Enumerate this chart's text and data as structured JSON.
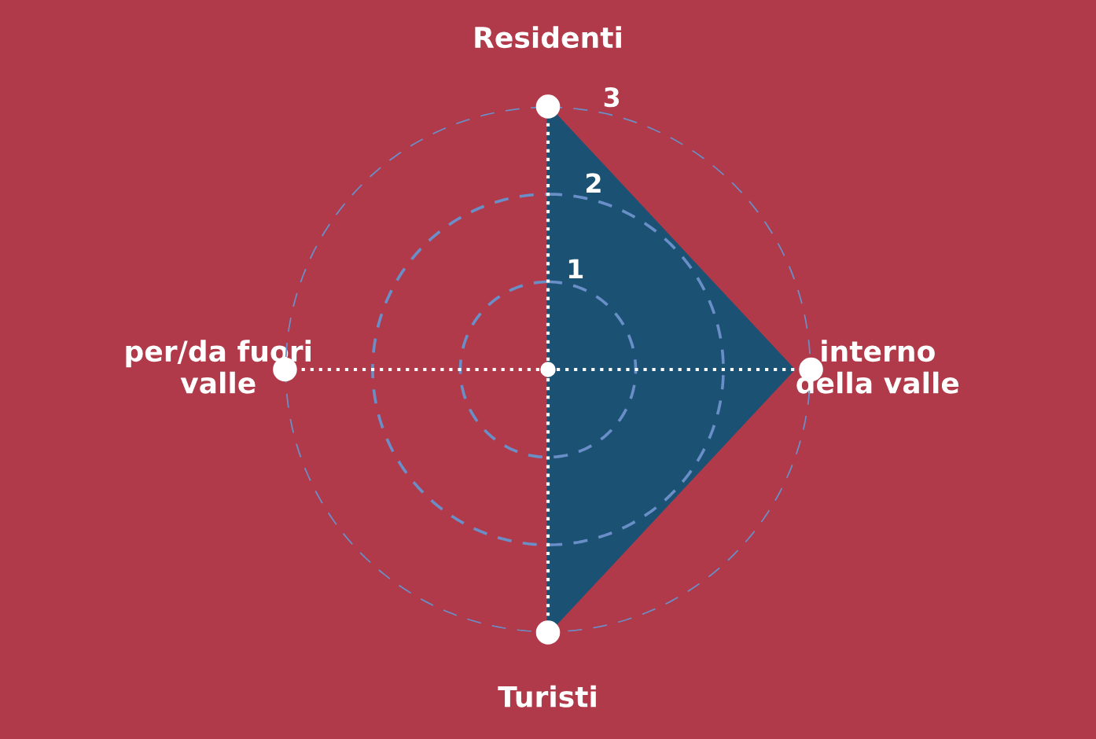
{
  "chart_data": {
    "type": "radar",
    "categories": [
      "Residenti",
      "interno\ndella valle",
      "Turisti",
      "per/da fuori\nvalle"
    ],
    "series": [
      {
        "color": "#1b5274",
        "values": [
          3,
          2.8,
          3,
          0
        ]
      }
    ],
    "ylim": [
      0,
      3
    ],
    "yticks": [
      1,
      2,
      3
    ],
    "grid": true,
    "legend": false
  }
}
